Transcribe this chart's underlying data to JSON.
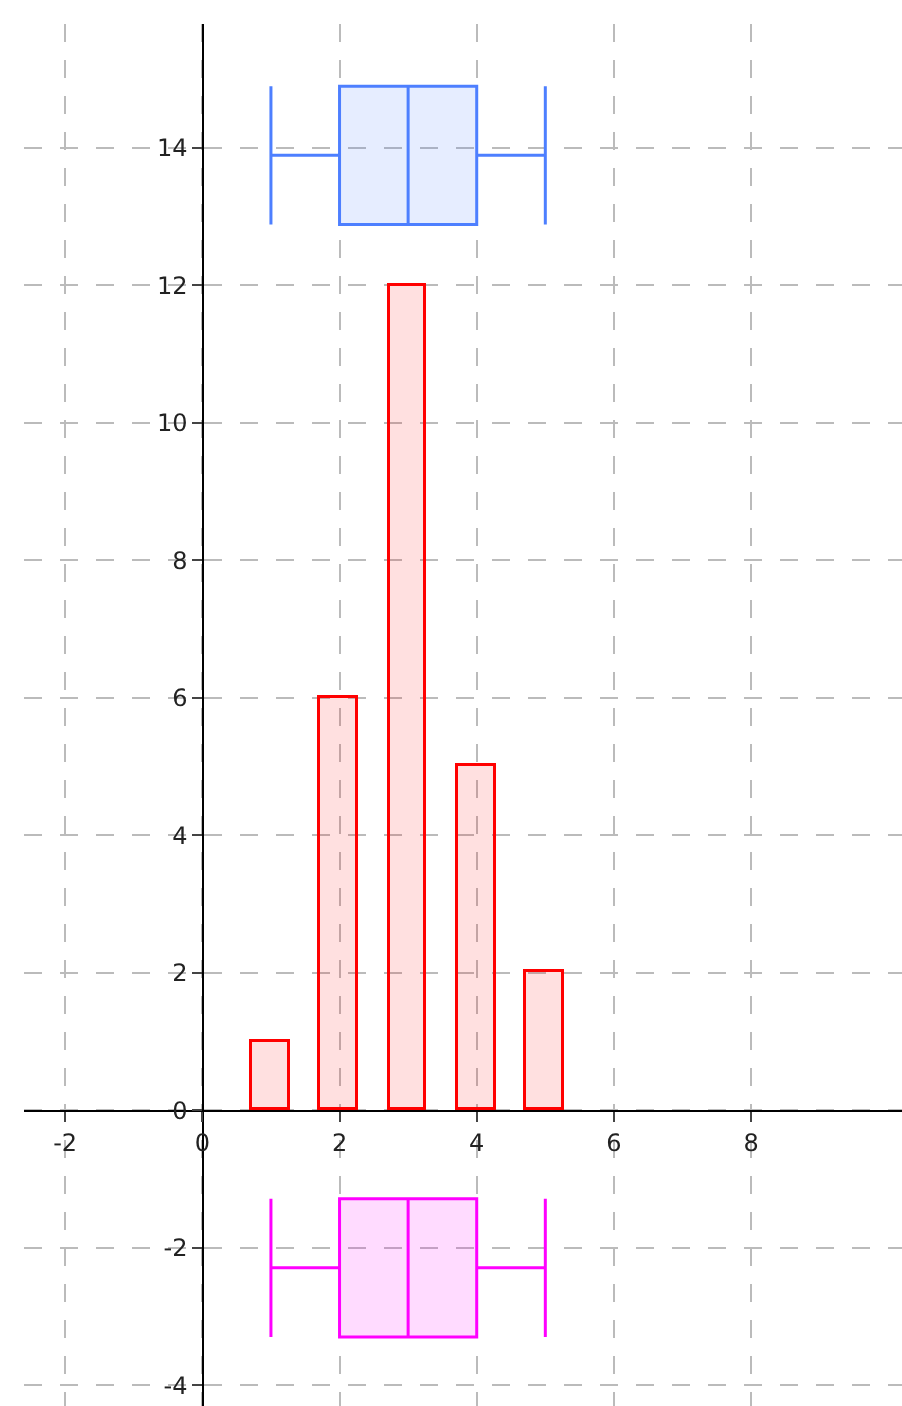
{
  "chart_data": [
    {
      "type": "bar",
      "xlim": [
        -2.6,
        10.2
      ],
      "ylim": [
        -4.3,
        15.8
      ],
      "xticks": [
        -2,
        0,
        2,
        4,
        6,
        8
      ],
      "yticks": [
        -4,
        -2,
        0,
        2,
        4,
        6,
        8,
        10,
        12,
        14
      ],
      "grid": true,
      "series": [
        {
          "color": "#ff0000",
          "x": [
            1,
            2,
            3,
            4,
            5
          ],
          "values": [
            1,
            6,
            12,
            5,
            2
          ]
        }
      ]
    },
    {
      "type": "box",
      "orientation": "horizontal",
      "xlim": [
        -2.6,
        10.2
      ],
      "tick_labels": false,
      "categories": [
        null
      ],
      "series": [
        {
          "color": "#4d7fff",
          "boxes": [
            {
              "low": 1,
              "q1": 2,
              "median": 3,
              "q3": 4,
              "high": 5
            }
          ]
        }
      ]
    },
    {
      "type": "box",
      "orientation": "horizontal",
      "xlim": [
        -2.6,
        10.2
      ],
      "tick_labels": false,
      "categories": [
        null
      ],
      "series": [
        {
          "color": "#ff00ff",
          "boxes": [
            {
              "low": 1,
              "q1": 2,
              "median": 3,
              "q3": 4,
              "high": 5
            }
          ]
        }
      ]
    }
  ]
}
